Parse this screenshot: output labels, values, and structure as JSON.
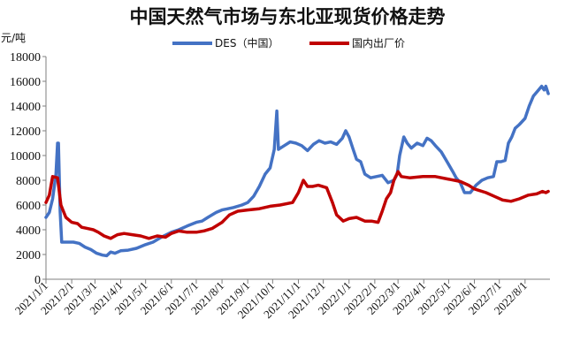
{
  "chart_data": {
    "type": "line",
    "title": "中国天然气市场与东北亚现货价格走势",
    "unit_label": "元/吨",
    "ylim": [
      0,
      18000
    ],
    "yticks": [
      0,
      2000,
      4000,
      6000,
      8000,
      10000,
      12000,
      14000,
      16000,
      18000
    ],
    "xlim": [
      "2021-01-01",
      "2022-08-31"
    ],
    "xticks": [
      "2021/1/1",
      "2021/2/1",
      "2021/3/1",
      "2021/4/1",
      "2021/5/1",
      "2021/6/1",
      "2021/7/1",
      "2021/8/1",
      "2021/9/1",
      "2021/10/1",
      "2021/11/1",
      "2021/12/1",
      "2022/1/1",
      "2022/2/1",
      "2022/3/1",
      "2022/4/1",
      "2022/5/1",
      "2022/6/1",
      "2022/7/1",
      "2022/8/1"
    ],
    "grid": false,
    "legend_position": "top-center",
    "series": [
      {
        "name": "DES（中国）",
        "color": "#4472C4",
        "points": [
          [
            "2021-01-01",
            5000
          ],
          [
            "2021-01-05",
            5400
          ],
          [
            "2021-01-09",
            6500
          ],
          [
            "2021-01-13",
            8500
          ],
          [
            "2021-01-15",
            11000
          ],
          [
            "2021-01-16",
            11000
          ],
          [
            "2021-01-18",
            5500
          ],
          [
            "2021-01-20",
            3000
          ],
          [
            "2021-01-27",
            3000
          ],
          [
            "2021-02-03",
            3000
          ],
          [
            "2021-02-10",
            2900
          ],
          [
            "2021-02-17",
            2600
          ],
          [
            "2021-02-24",
            2400
          ],
          [
            "2021-03-03",
            2100
          ],
          [
            "2021-03-10",
            1950
          ],
          [
            "2021-03-15",
            1900
          ],
          [
            "2021-03-20",
            2200
          ],
          [
            "2021-03-25",
            2100
          ],
          [
            "2021-04-01",
            2300
          ],
          [
            "2021-04-10",
            2350
          ],
          [
            "2021-04-20",
            2500
          ],
          [
            "2021-05-01",
            2800
          ],
          [
            "2021-05-10",
            3000
          ],
          [
            "2021-05-20",
            3400
          ],
          [
            "2021-06-01",
            3800
          ],
          [
            "2021-06-10",
            4000
          ],
          [
            "2021-06-20",
            4300
          ],
          [
            "2021-07-01",
            4600
          ],
          [
            "2021-07-08",
            4700
          ],
          [
            "2021-07-15",
            5000
          ],
          [
            "2021-07-25",
            5400
          ],
          [
            "2021-08-01",
            5600
          ],
          [
            "2021-08-15",
            5800
          ],
          [
            "2021-08-25",
            6000
          ],
          [
            "2021-09-01",
            6200
          ],
          [
            "2021-09-08",
            6700
          ],
          [
            "2021-09-15",
            7500
          ],
          [
            "2021-09-22",
            8500
          ],
          [
            "2021-09-28",
            9000
          ],
          [
            "2021-10-03",
            10500
          ],
          [
            "2021-10-06",
            13600
          ],
          [
            "2021-10-08",
            10500
          ],
          [
            "2021-10-15",
            10800
          ],
          [
            "2021-10-22",
            11100
          ],
          [
            "2021-10-29",
            11000
          ],
          [
            "2021-11-05",
            10800
          ],
          [
            "2021-11-12",
            10400
          ],
          [
            "2021-11-19",
            10900
          ],
          [
            "2021-11-26",
            11200
          ],
          [
            "2021-12-03",
            11000
          ],
          [
            "2021-12-10",
            11100
          ],
          [
            "2021-12-17",
            10900
          ],
          [
            "2021-12-24",
            11400
          ],
          [
            "2021-12-28",
            12000
          ],
          [
            "2022-01-01",
            11500
          ],
          [
            "2022-01-06",
            10500
          ],
          [
            "2022-01-10",
            9700
          ],
          [
            "2022-01-15",
            9500
          ],
          [
            "2022-01-20",
            8500
          ],
          [
            "2022-01-27",
            8200
          ],
          [
            "2022-02-03",
            8300
          ],
          [
            "2022-02-10",
            8400
          ],
          [
            "2022-02-17",
            7800
          ],
          [
            "2022-02-24",
            8000
          ],
          [
            "2022-02-28",
            8500
          ],
          [
            "2022-03-03",
            10000
          ],
          [
            "2022-03-08",
            11500
          ],
          [
            "2022-03-12",
            11000
          ],
          [
            "2022-03-17",
            10600
          ],
          [
            "2022-03-24",
            11000
          ],
          [
            "2022-03-31",
            10800
          ],
          [
            "2022-04-05",
            11400
          ],
          [
            "2022-04-10",
            11200
          ],
          [
            "2022-04-15",
            10800
          ],
          [
            "2022-04-22",
            10300
          ],
          [
            "2022-04-29",
            9500
          ],
          [
            "2022-05-06",
            8700
          ],
          [
            "2022-05-10",
            8200
          ],
          [
            "2022-05-15",
            7800
          ],
          [
            "2022-05-20",
            7000
          ],
          [
            "2022-05-27",
            7000
          ],
          [
            "2022-06-03",
            7600
          ],
          [
            "2022-06-10",
            8000
          ],
          [
            "2022-06-17",
            8200
          ],
          [
            "2022-06-24",
            8300
          ],
          [
            "2022-06-28",
            9500
          ],
          [
            "2022-07-03",
            9500
          ],
          [
            "2022-07-08",
            9600
          ],
          [
            "2022-07-12",
            11000
          ],
          [
            "2022-07-16",
            11500
          ],
          [
            "2022-07-20",
            12200
          ],
          [
            "2022-07-25",
            12500
          ],
          [
            "2022-08-01",
            13000
          ],
          [
            "2022-08-06",
            14000
          ],
          [
            "2022-08-11",
            14800
          ],
          [
            "2022-08-16",
            15200
          ],
          [
            "2022-08-21",
            15600
          ],
          [
            "2022-08-24",
            15300
          ],
          [
            "2022-08-26",
            15600
          ],
          [
            "2022-08-29",
            15000
          ]
        ]
      },
      {
        "name": "国内出厂价",
        "color": "#C00000",
        "points": [
          [
            "2021-01-01",
            6200
          ],
          [
            "2021-01-05",
            6800
          ],
          [
            "2021-01-09",
            8300
          ],
          [
            "2021-01-15",
            8200
          ],
          [
            "2021-01-19",
            6000
          ],
          [
            "2021-01-25",
            5000
          ],
          [
            "2021-02-01",
            4600
          ],
          [
            "2021-02-08",
            4500
          ],
          [
            "2021-02-13",
            4200
          ],
          [
            "2021-02-20",
            4100
          ],
          [
            "2021-02-27",
            4000
          ],
          [
            "2021-03-05",
            3800
          ],
          [
            "2021-03-12",
            3500
          ],
          [
            "2021-03-20",
            3300
          ],
          [
            "2021-03-28",
            3600
          ],
          [
            "2021-04-05",
            3700
          ],
          [
            "2021-04-15",
            3600
          ],
          [
            "2021-04-25",
            3500
          ],
          [
            "2021-05-05",
            3300
          ],
          [
            "2021-05-15",
            3500
          ],
          [
            "2021-05-25",
            3400
          ],
          [
            "2021-06-01",
            3700
          ],
          [
            "2021-06-10",
            3900
          ],
          [
            "2021-06-20",
            3800
          ],
          [
            "2021-07-01",
            3800
          ],
          [
            "2021-07-10",
            3900
          ],
          [
            "2021-07-20",
            4100
          ],
          [
            "2021-08-01",
            4600
          ],
          [
            "2021-08-10",
            5200
          ],
          [
            "2021-08-20",
            5500
          ],
          [
            "2021-09-01",
            5600
          ],
          [
            "2021-09-15",
            5700
          ],
          [
            "2021-09-28",
            5900
          ],
          [
            "2021-10-10",
            6000
          ],
          [
            "2021-10-25",
            6200
          ],
          [
            "2021-11-01",
            7000
          ],
          [
            "2021-11-07",
            8000
          ],
          [
            "2021-11-12",
            7500
          ],
          [
            "2021-11-18",
            7500
          ],
          [
            "2021-11-25",
            7600
          ],
          [
            "2021-12-05",
            7400
          ],
          [
            "2021-12-12",
            6200
          ],
          [
            "2021-12-17",
            5200
          ],
          [
            "2021-12-25",
            4700
          ],
          [
            "2022-01-01",
            4900
          ],
          [
            "2022-01-10",
            5000
          ],
          [
            "2022-01-20",
            4700
          ],
          [
            "2022-01-28",
            4700
          ],
          [
            "2022-02-05",
            4600
          ],
          [
            "2022-02-10",
            5500
          ],
          [
            "2022-02-15",
            6500
          ],
          [
            "2022-02-20",
            7000
          ],
          [
            "2022-02-24",
            8000
          ],
          [
            "2022-03-01",
            8700
          ],
          [
            "2022-03-05",
            8300
          ],
          [
            "2022-03-15",
            8200
          ],
          [
            "2022-03-31",
            8300
          ],
          [
            "2022-04-15",
            8300
          ],
          [
            "2022-04-30",
            8100
          ],
          [
            "2022-05-15",
            7900
          ],
          [
            "2022-05-25",
            7600
          ],
          [
            "2022-06-01",
            7300
          ],
          [
            "2022-06-15",
            7000
          ],
          [
            "2022-06-25",
            6700
          ],
          [
            "2022-07-05",
            6400
          ],
          [
            "2022-07-15",
            6300
          ],
          [
            "2022-07-25",
            6500
          ],
          [
            "2022-08-05",
            6800
          ],
          [
            "2022-08-15",
            6900
          ],
          [
            "2022-08-22",
            7100
          ],
          [
            "2022-08-26",
            7000
          ],
          [
            "2022-08-29",
            7100
          ]
        ]
      }
    ]
  }
}
